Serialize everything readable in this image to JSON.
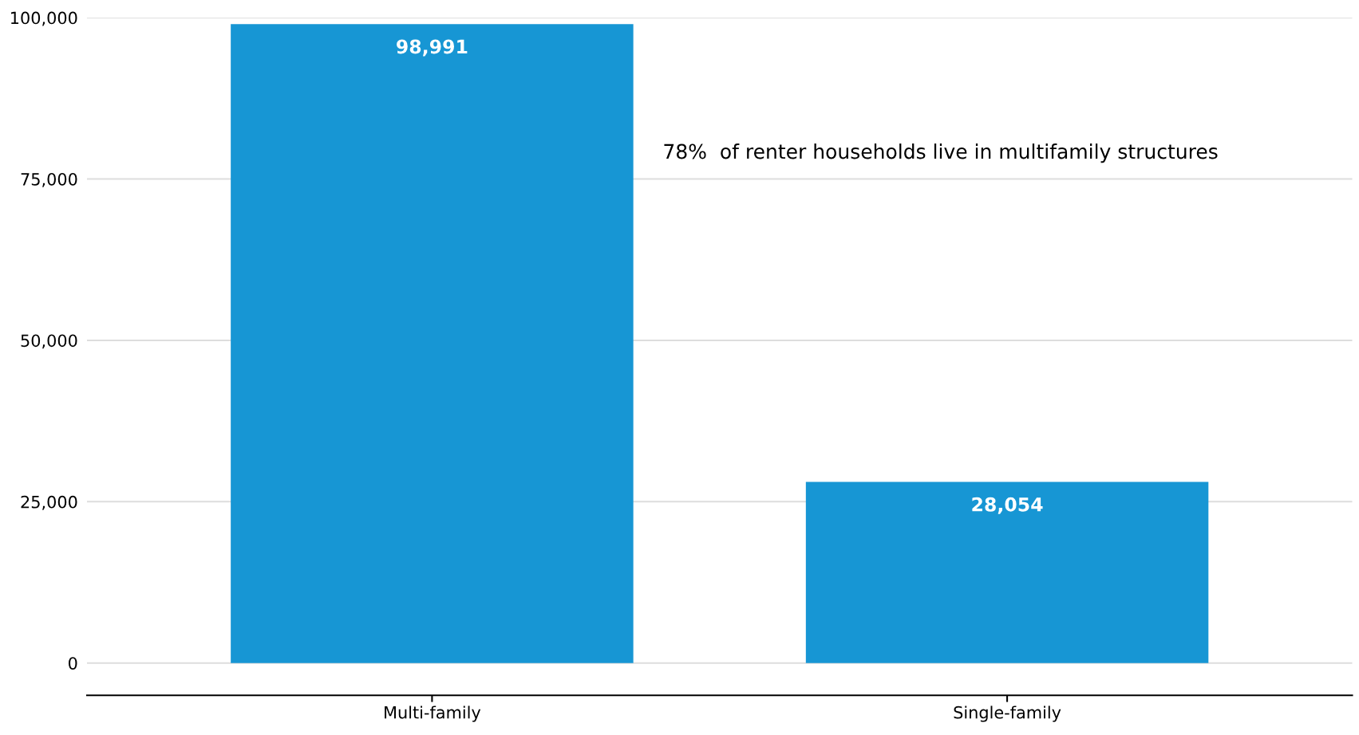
{
  "chart_data": {
    "type": "bar",
    "categories": [
      "Multi-family",
      "Single-family"
    ],
    "values": [
      98991,
      28054
    ],
    "value_labels": [
      "98,991",
      "28,054"
    ],
    "color": "#1796d4",
    "ylim": [
      -5000,
      100000
    ],
    "yticks": [
      {
        "value": 0,
        "label": "0"
      },
      {
        "value": 25000,
        "label": "25,000"
      },
      {
        "value": 50000,
        "label": "50,000"
      },
      {
        "value": 75000,
        "label": "75,000"
      },
      {
        "value": 100000,
        "label": "100,000"
      }
    ],
    "grid": "y",
    "annotations": [
      "78%  of renter households live in multifamily structures"
    ]
  }
}
